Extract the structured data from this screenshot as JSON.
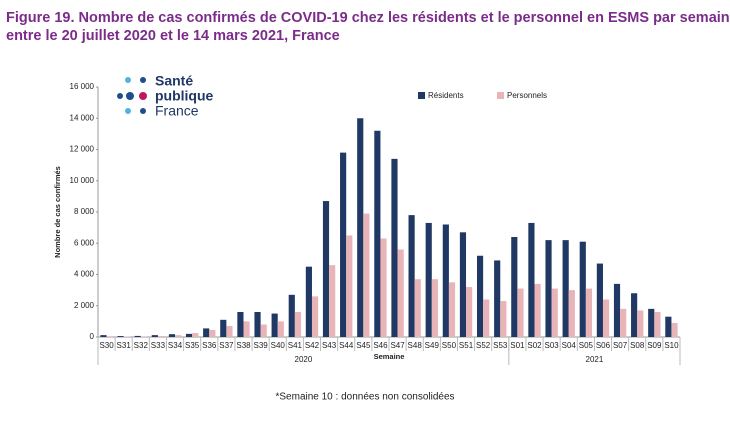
{
  "chart_data": {
    "type": "bar",
    "title": "Figure 19. Nombre de cas confirmés de COVID-19 chez les résidents et le personnel en ESMS par semaine,",
    "subtitle": "entre le 20 juillet 2020 et le 14 mars 2021, France",
    "logo": [
      "Santé",
      "publique",
      "France"
    ],
    "y_label": "Nombre de cas confirmés",
    "x_label": "Semaine",
    "groups": [
      "2020",
      "2021"
    ],
    "footnote": "*Semaine 10 : données non consolidées",
    "categories": [
      "S30",
      "S31",
      "S32",
      "S33",
      "S34",
      "S35",
      "S36",
      "S37",
      "S38",
      "S39",
      "S40",
      "S41",
      "S42",
      "S43",
      "S44",
      "S45",
      "S46",
      "S47",
      "S48",
      "S49",
      "S50",
      "S51",
      "S52",
      "S53",
      "S01",
      "S02",
      "S03",
      "S04",
      "S05",
      "S06",
      "S07",
      "S08",
      "S09",
      "S10"
    ],
    "series": [
      {
        "name": "Résidents",
        "color": "#1f3864",
        "values": [
          120,
          60,
          70,
          120,
          180,
          200,
          550,
          1100,
          1600,
          1600,
          1500,
          2700,
          4500,
          8700,
          11800,
          14000,
          13200,
          11400,
          7800,
          7300,
          7200,
          6700,
          5200,
          4900,
          6400,
          7300,
          6200,
          6200,
          6100,
          4700,
          3400,
          2800,
          1800,
          1300
        ]
      },
      {
        "name": "Personnels",
        "color": "#e8b4b8",
        "values": [
          50,
          30,
          40,
          60,
          120,
          250,
          450,
          700,
          1000,
          800,
          1000,
          1600,
          2600,
          4600,
          6500,
          7900,
          6300,
          5600,
          3700,
          3700,
          3500,
          3200,
          2400,
          2300,
          3100,
          3400,
          3100,
          3000,
          3100,
          2400,
          1800,
          1700,
          1600,
          900
        ]
      }
    ],
    "ylim": [
      0,
      16000
    ],
    "yticks": [
      0,
      {
        "value": 2000,
        "label": "2 000"
      },
      {
        "value": 4000,
        "label": "4 000"
      },
      {
        "value": 6000,
        "label": "6 000"
      },
      {
        "value": 8000,
        "label": "8 000"
      },
      {
        "value": 10000,
        "label": "10 000"
      },
      {
        "value": 12000,
        "label": "12 000"
      },
      {
        "value": 14000,
        "label": "14 000"
      },
      {
        "value": 16000,
        "label": "16 000"
      }
    ],
    "grid": false
  }
}
